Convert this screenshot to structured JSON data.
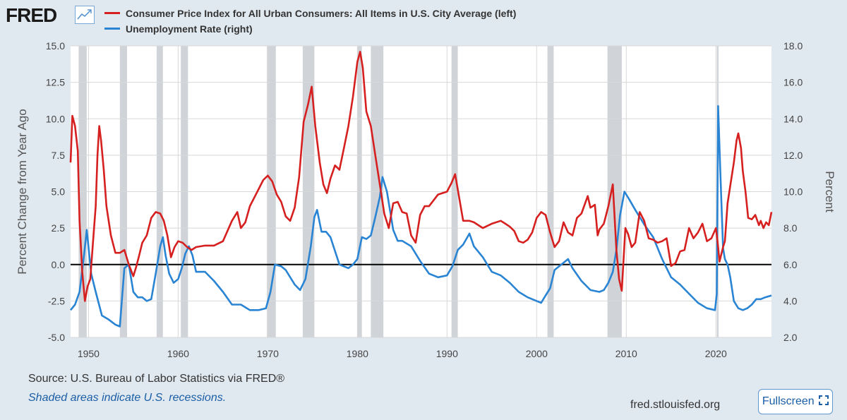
{
  "header": {
    "logo": "FRED",
    "logo_icon": "chart-line-icon"
  },
  "chart_data": {
    "type": "line",
    "title": "",
    "xlabel": "",
    "ylabel": "Percent Change from Year Ago",
    "y2label": "Percent",
    "xlim": [
      1948,
      2026.2
    ],
    "ylim": [
      -5,
      15
    ],
    "y2lim": [
      2,
      18
    ],
    "x_ticks": [
      1950,
      1960,
      1970,
      1980,
      1990,
      2000,
      2010,
      2020
    ],
    "y_ticks": [
      "15.0",
      "12.5",
      "10.0",
      "7.5",
      "5.0",
      "2.5",
      "0.0",
      "-2.5",
      "-5.0"
    ],
    "y2_ticks": [
      "18.0",
      "16.0",
      "14.0",
      "12.0",
      "10.0",
      "8.0",
      "6.0",
      "4.0",
      "2.0"
    ],
    "legend_position": "top-left",
    "grid": true,
    "zero_line": 0,
    "recessions": [
      [
        1948.9,
        1949.8
      ],
      [
        1953.5,
        1954.3
      ],
      [
        1957.6,
        1958.3
      ],
      [
        1960.3,
        1961.1
      ],
      [
        1969.9,
        1970.9
      ],
      [
        1973.9,
        1975.2
      ],
      [
        1980.0,
        1980.5
      ],
      [
        1981.5,
        1982.9
      ],
      [
        1990.5,
        1991.2
      ],
      [
        2001.2,
        2001.9
      ],
      [
        2007.9,
        2009.5
      ],
      [
        2020.1,
        2020.3
      ]
    ],
    "series": [
      {
        "name": "Consumer Price Index for All Urban Consumers: All Items in U.S. City Average (left)",
        "axis": "left",
        "color": "#d62020",
        "x": [
          1948.0,
          1948.2,
          1948.5,
          1948.8,
          1949.0,
          1949.3,
          1949.6,
          1949.9,
          1950.2,
          1950.5,
          1950.8,
          1951.0,
          1951.2,
          1951.4,
          1951.7,
          1952.0,
          1952.5,
          1953.0,
          1953.5,
          1954.0,
          1954.5,
          1955.0,
          1955.3,
          1955.6,
          1956.0,
          1956.5,
          1957.0,
          1957.5,
          1958.0,
          1958.4,
          1958.8,
          1959.2,
          1959.6,
          1960.0,
          1960.5,
          1961.0,
          1961.5,
          1962.0,
          1963.0,
          1964.0,
          1965.0,
          1966.0,
          1966.6,
          1967.0,
          1967.5,
          1968.0,
          1969.0,
          1969.5,
          1970.0,
          1970.5,
          1971.0,
          1971.5,
          1972.0,
          1972.5,
          1973.0,
          1973.5,
          1974.0,
          1974.5,
          1974.9,
          1975.3,
          1975.8,
          1976.2,
          1976.6,
          1977.0,
          1977.5,
          1978.0,
          1978.5,
          1979.0,
          1979.5,
          1980.0,
          1980.3,
          1980.6,
          1981.0,
          1981.5,
          1982.0,
          1982.5,
          1983.0,
          1983.5,
          1984.0,
          1984.5,
          1985.0,
          1985.5,
          1986.0,
          1986.5,
          1987.0,
          1987.5,
          1988.0,
          1989.0,
          1990.0,
          1990.5,
          1990.9,
          1991.3,
          1991.8,
          1992.5,
          1993.0,
          1994.0,
          1995.0,
          1996.0,
          1996.5,
          1997.0,
          1997.5,
          1998.0,
          1998.5,
          1999.0,
          1999.5,
          2000.0,
          2000.5,
          2001.0,
          2001.5,
          2002.0,
          2002.5,
          2003.0,
          2003.5,
          2004.0,
          2004.5,
          2005.0,
          2005.7,
          2006.0,
          2006.5,
          2006.8,
          2007.0,
          2007.5,
          2008.0,
          2008.5,
          2008.9,
          2009.2,
          2009.5,
          2009.9,
          2010.2,
          2010.6,
          2011.0,
          2011.5,
          2012.0,
          2012.5,
          2013.0,
          2013.5,
          2014.0,
          2014.5,
          2015.0,
          2015.5,
          2016.0,
          2016.5,
          2017.0,
          2017.5,
          2018.0,
          2018.5,
          2019.0,
          2019.5,
          2020.0,
          2020.2,
          2020.4,
          2020.8,
          2021.0,
          2021.3,
          2021.6,
          2022.0,
          2022.3,
          2022.5,
          2022.8,
          2023.0,
          2023.3,
          2023.6,
          2024.0,
          2024.4,
          2024.8,
          2025.0,
          2025.3,
          2025.6,
          2025.9,
          2026.2
        ],
        "values": [
          7.0,
          10.2,
          9.5,
          7.8,
          3.0,
          -0.5,
          -2.5,
          -1.5,
          -1.0,
          1.5,
          4.0,
          7.5,
          9.5,
          8.5,
          6.5,
          4.0,
          2.0,
          0.8,
          0.8,
          1.0,
          0.0,
          -0.8,
          -0.2,
          0.5,
          1.5,
          2.0,
          3.2,
          3.6,
          3.5,
          3.0,
          2.0,
          0.5,
          1.2,
          1.6,
          1.5,
          1.2,
          1.0,
          1.2,
          1.3,
          1.3,
          1.6,
          3.0,
          3.6,
          2.5,
          2.9,
          4.0,
          5.2,
          5.8,
          6.1,
          5.7,
          4.8,
          4.3,
          3.3,
          3.0,
          3.9,
          6.0,
          9.8,
          11.0,
          12.2,
          9.5,
          7.0,
          5.5,
          4.9,
          5.9,
          6.8,
          6.5,
          8.0,
          9.5,
          11.5,
          13.9,
          14.6,
          13.5,
          10.5,
          9.5,
          7.5,
          5.5,
          3.5,
          2.5,
          4.2,
          4.3,
          3.6,
          3.5,
          2.0,
          1.5,
          3.4,
          4.0,
          4.0,
          4.8,
          5.0,
          5.6,
          6.2,
          4.8,
          3.0,
          3.0,
          2.9,
          2.5,
          2.8,
          3.0,
          2.8,
          2.6,
          2.3,
          1.6,
          1.5,
          1.7,
          2.2,
          3.2,
          3.6,
          3.4,
          2.2,
          1.2,
          1.6,
          2.9,
          2.2,
          2.0,
          3.2,
          3.5,
          4.7,
          3.9,
          4.1,
          2.0,
          2.4,
          2.8,
          4.0,
          5.5,
          1.0,
          -1.0,
          -1.8,
          2.5,
          2.1,
          1.2,
          1.5,
          3.6,
          3.0,
          1.8,
          1.7,
          1.5,
          1.6,
          1.8,
          -0.1,
          0.1,
          0.9,
          1.0,
          2.5,
          1.8,
          2.2,
          2.8,
          1.6,
          1.8,
          2.5,
          1.5,
          0.2,
          1.2,
          1.6,
          4.2,
          5.4,
          7.0,
          8.5,
          9.0,
          8.0,
          6.4,
          5.0,
          3.2,
          3.1,
          3.4,
          2.7,
          3.0,
          2.5,
          2.9,
          2.7,
          3.6
        ]
      },
      {
        "name": "Unemployment Rate (right)",
        "axis": "right",
        "color": "#2a84d4",
        "x": [
          1948.0,
          1948.5,
          1949.0,
          1949.5,
          1949.8,
          1950.3,
          1950.8,
          1951.5,
          1952.2,
          1953.0,
          1953.5,
          1954.0,
          1954.5,
          1955.0,
          1955.5,
          1956.0,
          1956.5,
          1957.0,
          1957.5,
          1958.0,
          1958.3,
          1958.6,
          1959.0,
          1959.5,
          1960.0,
          1960.4,
          1960.8,
          1961.2,
          1961.6,
          1962.0,
          1963.0,
          1964.0,
          1965.0,
          1966.0,
          1967.0,
          1968.0,
          1969.0,
          1969.8,
          1970.3,
          1970.8,
          1971.5,
          1972.0,
          1973.0,
          1973.6,
          1974.2,
          1974.8,
          1975.2,
          1975.5,
          1976.0,
          1976.5,
          1977.0,
          1978.0,
          1979.0,
          1979.5,
          1980.0,
          1980.5,
          1981.0,
          1981.5,
          1982.0,
          1982.5,
          1982.8,
          1983.3,
          1984.0,
          1984.5,
          1985.0,
          1986.0,
          1987.0,
          1988.0,
          1989.0,
          1990.0,
          1990.6,
          1991.2,
          1991.8,
          1992.5,
          1993.0,
          1994.0,
          1995.0,
          1996.0,
          1997.0,
          1998.0,
          1999.0,
          2000.0,
          2000.5,
          2001.0,
          2001.5,
          2002.0,
          2002.5,
          2003.0,
          2003.5,
          2004.0,
          2005.0,
          2006.0,
          2007.0,
          2007.5,
          2008.0,
          2008.5,
          2008.9,
          2009.3,
          2009.8,
          2010.3,
          2011.0,
          2012.0,
          2013.0,
          2014.0,
          2015.0,
          2016.0,
          2017.0,
          2018.0,
          2019.0,
          2019.9,
          2020.1,
          2020.25,
          2020.5,
          2020.8,
          2021.0,
          2021.3,
          2021.6,
          2022.0,
          2022.5,
          2023.0,
          2023.5,
          2024.0,
          2024.5,
          2025.0,
          2025.5,
          2026.2
        ],
        "values": [
          3.5,
          3.8,
          4.5,
          6.5,
          7.9,
          5.5,
          4.5,
          3.2,
          3.0,
          2.7,
          2.6,
          5.8,
          6.0,
          4.5,
          4.2,
          4.2,
          4.0,
          4.1,
          5.5,
          7.0,
          7.5,
          6.5,
          5.5,
          5.0,
          5.2,
          5.8,
          6.6,
          7.0,
          6.5,
          5.6,
          5.6,
          5.1,
          4.5,
          3.8,
          3.8,
          3.5,
          3.5,
          3.6,
          4.5,
          6.0,
          5.9,
          5.7,
          4.9,
          4.6,
          5.2,
          7.0,
          8.6,
          9.0,
          7.8,
          7.8,
          7.5,
          6.0,
          5.8,
          6.0,
          6.3,
          7.5,
          7.4,
          7.6,
          8.6,
          9.7,
          10.8,
          10.0,
          7.9,
          7.3,
          7.3,
          7.0,
          6.2,
          5.5,
          5.3,
          5.4,
          5.9,
          6.8,
          7.1,
          7.7,
          7.0,
          6.4,
          5.6,
          5.4,
          5.0,
          4.5,
          4.2,
          4.0,
          3.9,
          4.3,
          4.7,
          5.7,
          5.9,
          6.1,
          6.3,
          5.8,
          5.1,
          4.6,
          4.5,
          4.6,
          5.0,
          5.6,
          6.8,
          8.7,
          10.0,
          9.6,
          9.0,
          8.2,
          7.5,
          6.3,
          5.3,
          4.9,
          4.4,
          3.9,
          3.6,
          3.5,
          4.4,
          14.7,
          11.0,
          6.9,
          6.3,
          6.0,
          5.3,
          4.0,
          3.6,
          3.5,
          3.6,
          3.8,
          4.1,
          4.1,
          4.2,
          4.3
        ]
      }
    ]
  },
  "footer": {
    "source": "Source: U.S. Bureau of Labor Statistics via FRED®",
    "shaded_note": "Shaded areas indicate U.S. recessions.",
    "site": "fred.stlouisfed.org",
    "fullscreen_label": "Fullscreen",
    "fullscreen_icon": "fullscreen-icon"
  }
}
